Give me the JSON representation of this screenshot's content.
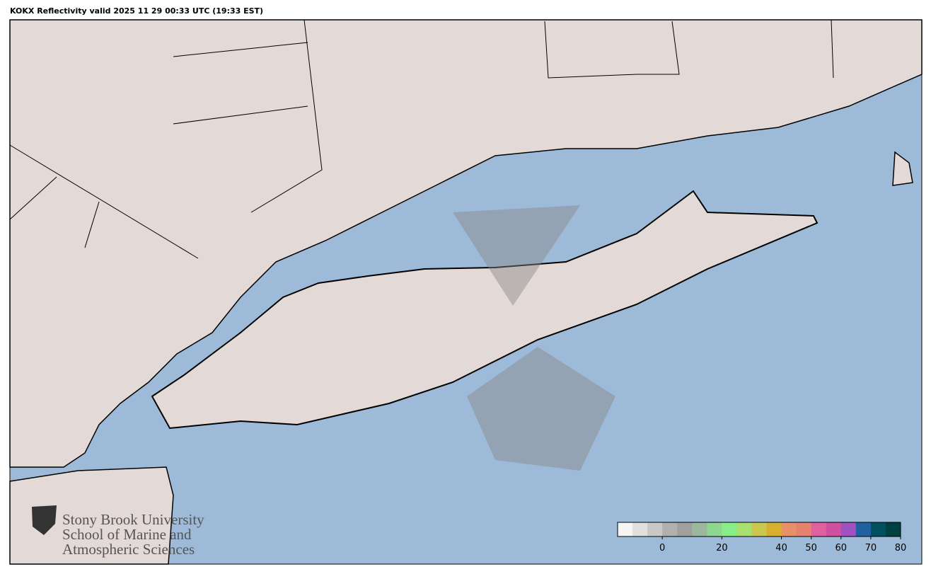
{
  "title": "KOKX Reflectivity valid 2025 11 29 00:33 UTC (19:33 EST)",
  "logo": {
    "lines": [
      "Stony Brook University",
      "School of Marine and",
      "Atmospheric Sciences"
    ]
  },
  "colorbar": {
    "range": [
      -15,
      80
    ],
    "ticks": [
      0,
      20,
      40,
      50,
      60,
      70,
      80
    ],
    "colors": [
      "#f5f5f5",
      "#e0e0e0",
      "#c8c8c8",
      "#b0b0b0",
      "#a0a0a0",
      "#9cb89c",
      "#8fd68f",
      "#88ee88",
      "#a8e070",
      "#cbc850",
      "#d8b030",
      "#e8906a",
      "#e88070",
      "#e060a0",
      "#d050a0",
      "#a050c0",
      "#2060a0",
      "#005060",
      "#004040"
    ]
  }
}
